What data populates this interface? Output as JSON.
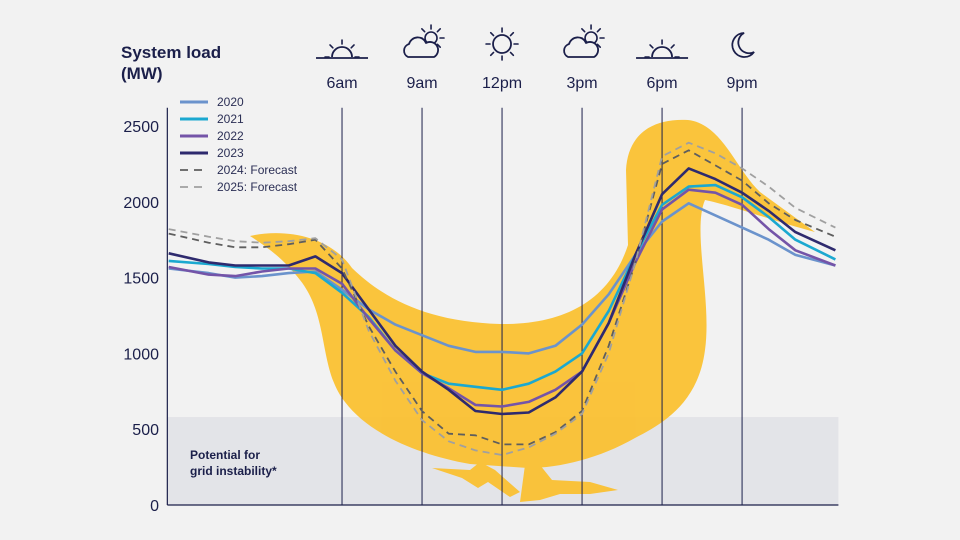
{
  "chart_data": {
    "type": "line",
    "title": "System load (MW)",
    "title_lines": [
      "System load",
      "(MW)"
    ],
    "ylim": [
      0,
      2500
    ],
    "yticks": [
      0,
      500,
      1000,
      1500,
      2000,
      2500
    ],
    "xlim": [
      -0.55,
      24.5
    ],
    "time_labels": [
      {
        "hour": 6,
        "label": "6am",
        "icon": "sunrise-icon"
      },
      {
        "hour": 9,
        "label": "9am",
        "icon": "cloud-sun-icon"
      },
      {
        "hour": 12,
        "label": "12pm",
        "icon": "sun-icon"
      },
      {
        "hour": 15,
        "label": "3pm",
        "icon": "cloud-sun-icon"
      },
      {
        "hour": 18,
        "label": "6pm",
        "icon": "sunset-icon"
      },
      {
        "hour": 21,
        "label": "9pm",
        "icon": "moon-icon"
      }
    ],
    "x": [
      -0.5,
      1,
      2,
      3,
      4,
      5,
      6,
      7,
      8,
      9,
      10,
      11,
      12,
      13,
      14,
      15,
      16,
      17,
      18,
      19,
      20,
      21,
      22,
      23,
      24.5
    ],
    "series": [
      {
        "name": "2020",
        "color": "#6b93cc",
        "dashed": false,
        "values": [
          1560,
          1530,
          1500,
          1510,
          1530,
          1540,
          1420,
          1290,
          1190,
          1120,
          1050,
          1010,
          1010,
          1000,
          1050,
          1190,
          1390,
          1650,
          1870,
          1990,
          1910,
          1830,
          1750,
          1650,
          1580
        ]
      },
      {
        "name": "2021",
        "color": "#1ba8d0",
        "dashed": false,
        "values": [
          1610,
          1590,
          1570,
          1560,
          1560,
          1530,
          1400,
          1240,
          1020,
          870,
          800,
          780,
          760,
          800,
          880,
          1000,
          1280,
          1650,
          1980,
          2100,
          2110,
          2030,
          1900,
          1750,
          1620
        ]
      },
      {
        "name": "2022",
        "color": "#7454a8",
        "dashed": false,
        "values": [
          1570,
          1520,
          1510,
          1540,
          1560,
          1560,
          1460,
          1230,
          1020,
          870,
          770,
          660,
          650,
          680,
          760,
          880,
          1200,
          1600,
          1950,
          2080,
          2060,
          1980,
          1820,
          1680,
          1580
        ]
      },
      {
        "name": "2023",
        "color": "#2e2a6e",
        "dashed": false,
        "values": [
          1660,
          1600,
          1580,
          1580,
          1580,
          1640,
          1530,
          1290,
          1050,
          880,
          760,
          620,
          600,
          610,
          710,
          880,
          1200,
          1650,
          2050,
          2220,
          2150,
          2060,
          1940,
          1800,
          1680
        ]
      },
      {
        "name": "2024: Forecast",
        "color": "#5e5e5e",
        "dashed": true,
        "values": [
          1790,
          1730,
          1700,
          1700,
          1720,
          1750,
          1560,
          1180,
          880,
          620,
          470,
          460,
          400,
          400,
          480,
          620,
          1050,
          1600,
          2250,
          2340,
          2240,
          2140,
          1990,
          1880,
          1770
        ]
      },
      {
        "name": "2025: Forecast",
        "color": "#a0a0a0",
        "dashed": true,
        "values": [
          1820,
          1770,
          1740,
          1730,
          1740,
          1760,
          1620,
          1150,
          820,
          560,
          420,
          360,
          330,
          380,
          470,
          600,
          1000,
          1600,
          2300,
          2390,
          2320,
          2220,
          2100,
          1960,
          1830
        ]
      }
    ],
    "legend": "top-left",
    "instability_band": {
      "max_mw": 580,
      "label_lines": [
        "Potential for",
        "grid instability*"
      ],
      "color": "#e3e4e8"
    },
    "duck_color": "#fbc02d"
  }
}
